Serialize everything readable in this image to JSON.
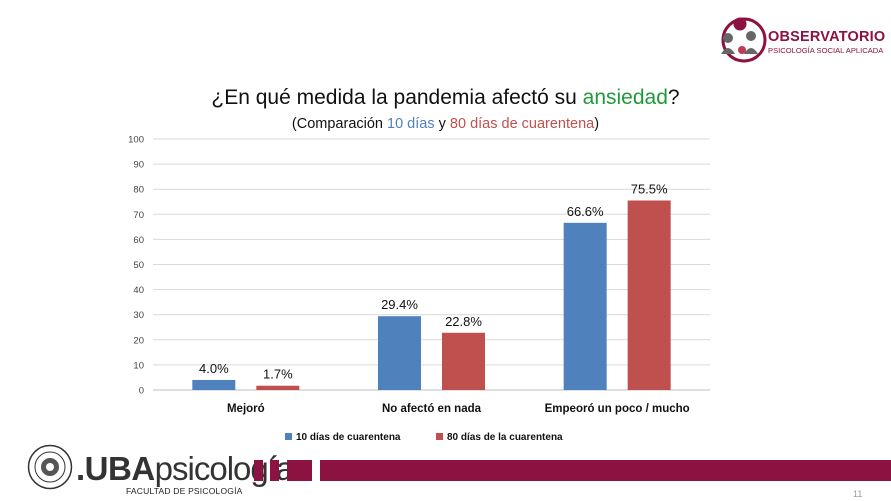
{
  "header": {
    "logo_title": "OBSERVATORIO",
    "logo_subtitle": "PSICOLOGÍA SOCIAL APLICADA"
  },
  "chart_data": {
    "type": "bar",
    "title_prefix": "¿En qué medida la pandemia afectó su ",
    "title_keyword": "ansiedad",
    "title_suffix": "?",
    "subtitle_prefix": "(Comparación ",
    "subtitle_series1": "10 días",
    "subtitle_mid": " y ",
    "subtitle_series2": "80 días de cuarentena",
    "subtitle_suffix": ")",
    "categories": [
      "Mejoró",
      "No afectó en nada",
      "Empeoró un poco / mucho"
    ],
    "series": [
      {
        "name": "10 días de cuarentena",
        "color": "#4f81bd",
        "values": [
          4.0,
          29.4,
          66.6
        ],
        "labels": [
          "4.0%",
          "29.4%",
          "66.6%"
        ]
      },
      {
        "name": "80 días de la cuarentena",
        "color": "#c0504d",
        "values": [
          1.7,
          22.8,
          75.5
        ],
        "labels": [
          "1.7%",
          "22.8%",
          "75.5%"
        ]
      }
    ],
    "ylim": [
      0,
      100
    ],
    "yticks": [
      "0",
      "10",
      "20",
      "30",
      "40",
      "50",
      "60",
      "70",
      "80",
      "90",
      "100"
    ],
    "grid": true,
    "legend_position": "bottom"
  },
  "footer": {
    "brand_bold": ".UBA",
    "brand_light": "psicología",
    "faculty": "FACULTAD DE PSICOLOGÍA",
    "accent": "#8c1241",
    "page_number": "11"
  }
}
